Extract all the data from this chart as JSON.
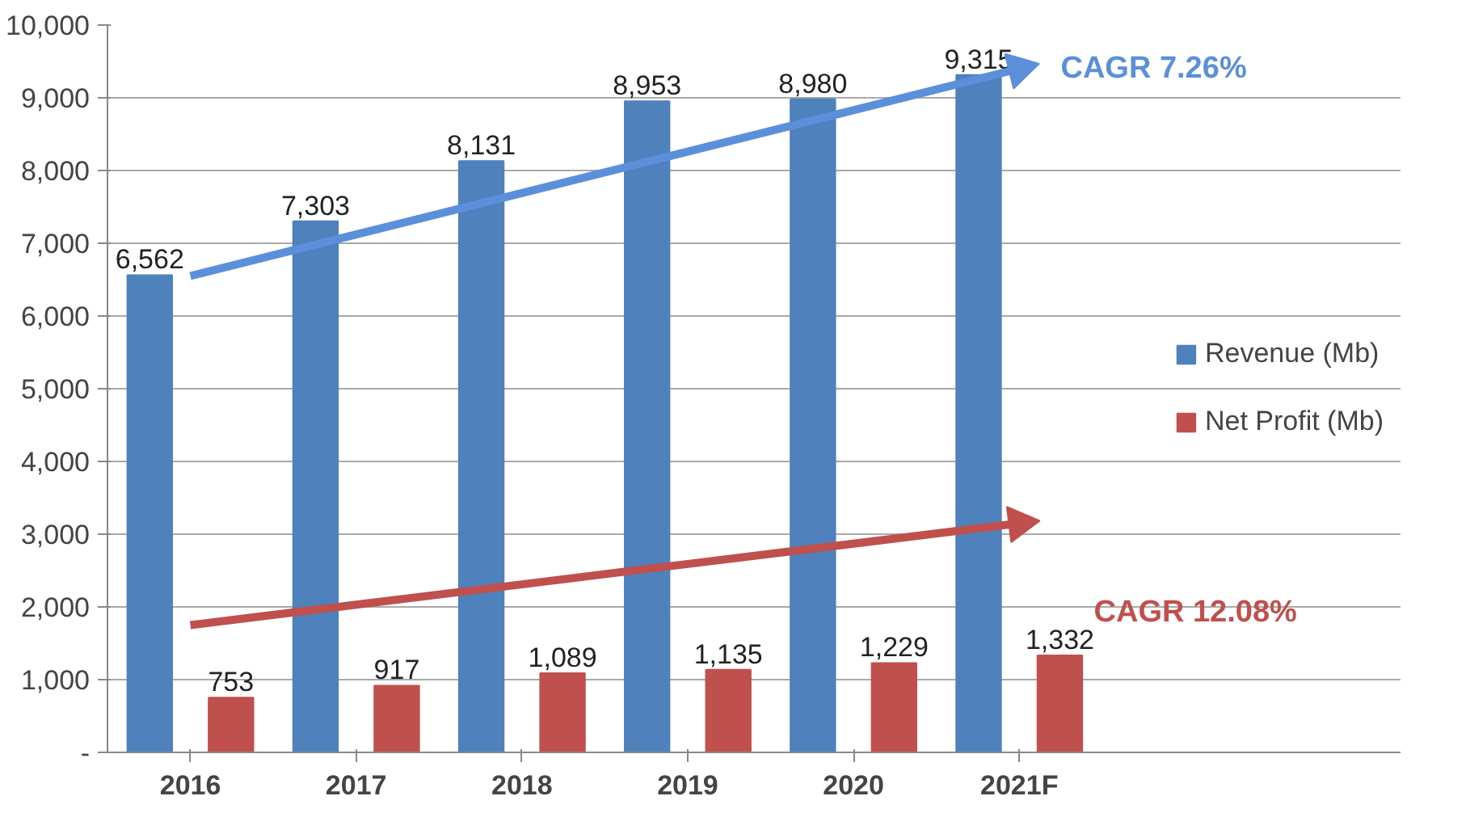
{
  "chart_data": {
    "type": "bar",
    "categories": [
      "2016",
      "2017",
      "2018",
      "2019",
      "2020",
      "2021F"
    ],
    "series": [
      {
        "name": "Revenue (Mb)",
        "color": "#4f81bd",
        "values": [
          6562,
          7303,
          8131,
          8953,
          8980,
          9315
        ],
        "value_labels": [
          "6,562",
          "7,303",
          "8,131",
          "8,953",
          "8,980",
          "9,315"
        ]
      },
      {
        "name": "Net Profit (Mb)",
        "color": "#c0504d",
        "values": [
          753,
          917,
          1089,
          1135,
          1229,
          1332
        ],
        "value_labels": [
          "753",
          "917",
          "1,089",
          "1,135",
          "1,229",
          "1,332"
        ]
      },
      {
        "type": "line",
        "color": "#5b8fd9",
        "values": [
          6550,
          7120,
          7690,
          8260,
          8830,
          9400
        ]
      },
      {
        "type": "line",
        "color": "#c0504d",
        "values": [
          1750,
          2030,
          2310,
          2590,
          2870,
          3150
        ]
      }
    ],
    "annotations": [
      {
        "text": "CAGR 7.26%",
        "x": "2021F",
        "y": 9400
      },
      "CAGR  12.08%"
    ],
    "ylim": [
      0,
      10000
    ],
    "yticks": [
      {
        "value": 0,
        "label": "-"
      },
      {
        "value": 1000,
        "label": "1,000"
      },
      {
        "value": 2000,
        "label": "2,000"
      },
      {
        "value": 3000,
        "label": "3,000"
      },
      {
        "value": 4000,
        "label": "4,000"
      },
      {
        "value": 5000,
        "label": "5,000"
      },
      {
        "value": 6000,
        "label": "6,000"
      },
      {
        "value": 7000,
        "label": "7,000"
      },
      {
        "value": 8000,
        "label": "8,000"
      },
      {
        "value": 9000,
        "label": "9,000"
      },
      {
        "value": 10000,
        "label": "10,000"
      }
    ],
    "grid": "y",
    "legend": "right"
  }
}
